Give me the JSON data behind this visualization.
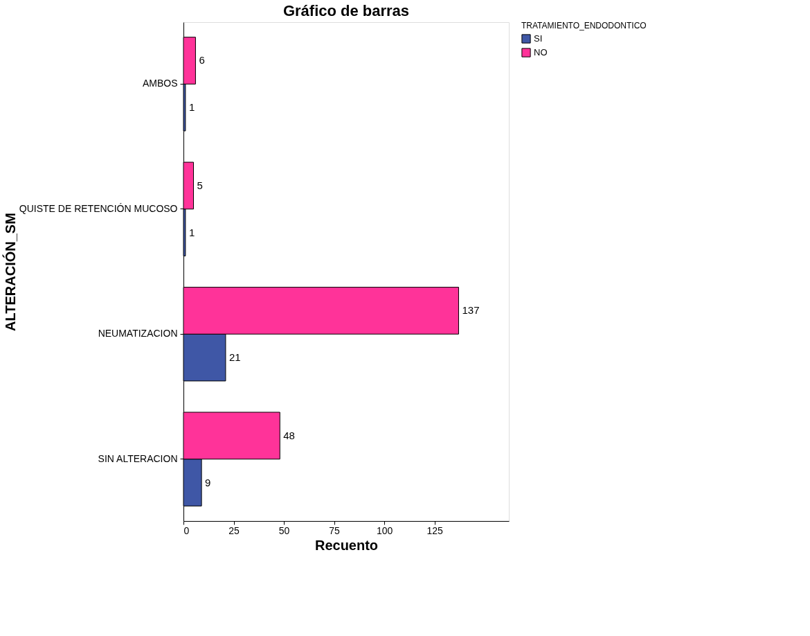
{
  "chart_data": {
    "type": "bar",
    "orientation": "horizontal",
    "title": "Gráfico de barras",
    "xlabel": "Recuento",
    "ylabel": "ALTERACIÓN_SM",
    "legend_title": "TRATAMIENTO_ENDODONTICO",
    "categories": [
      "AMBOS",
      "QUISTE DE RETENCIÓN MUCOSO",
      "NEUMATIZACION",
      "SIN ALTERACION"
    ],
    "series": [
      {
        "name": "SI",
        "color": "#3f57a6",
        "values": [
          1,
          1,
          21,
          9
        ]
      },
      {
        "name": "NO",
        "color": "#ff3399",
        "values": [
          6,
          5,
          137,
          48
        ]
      }
    ],
    "xlim": [
      0,
      162
    ],
    "xticks": [
      0,
      25,
      50,
      75,
      100,
      125
    ],
    "data_labels": true,
    "grid": false,
    "legend": "top right"
  }
}
